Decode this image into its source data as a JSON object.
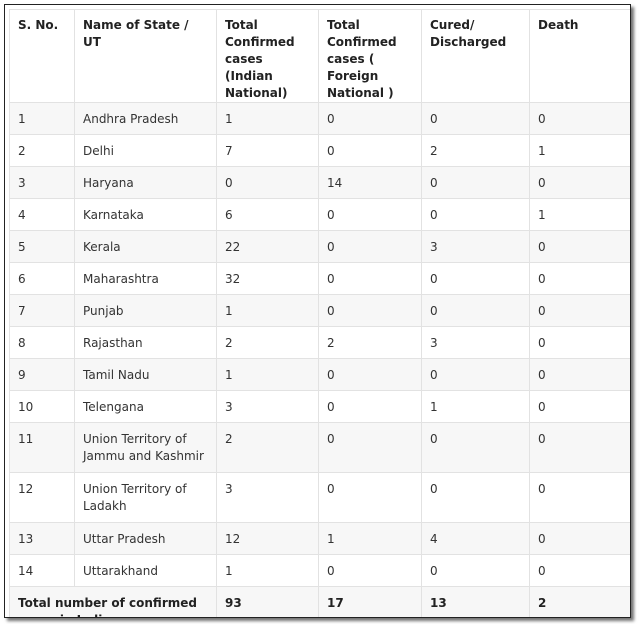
{
  "headers": [
    "S. No.",
    "Name of State / UT",
    "Total Confirmed cases (Indian National)",
    "Total Confirmed cases ( Foreign National )",
    "Cured/ Discharged",
    "Death"
  ],
  "rows": [
    [
      "1",
      "Andhra Pradesh",
      "1",
      "0",
      "0",
      "0"
    ],
    [
      "2",
      "Delhi",
      "7",
      "0",
      "2",
      "1"
    ],
    [
      "3",
      "Haryana",
      "0",
      "14",
      "0",
      "0"
    ],
    [
      "4",
      "Karnataka",
      "6",
      "0",
      "0",
      "1"
    ],
    [
      "5",
      "Kerala",
      "22",
      "0",
      "3",
      "0"
    ],
    [
      "6",
      "Maharashtra",
      "32",
      "0",
      "0",
      "0"
    ],
    [
      "7",
      "Punjab",
      "1",
      "0",
      "0",
      "0"
    ],
    [
      "8",
      "Rajasthan",
      "2",
      "2",
      "3",
      "0"
    ],
    [
      "9",
      "Tamil Nadu",
      "1",
      "0",
      "0",
      "0"
    ],
    [
      "10",
      "Telengana",
      "3",
      "0",
      "1",
      "0"
    ],
    [
      "11",
      "Union Territory of Jammu and Kashmir",
      "2",
      "0",
      "0",
      "0"
    ],
    [
      "12",
      "Union Territory of Ladakh",
      "3",
      "0",
      "0",
      "0"
    ],
    [
      "13",
      "Uttar Pradesh",
      "12",
      "1",
      "4",
      "0"
    ],
    [
      "14",
      "Uttarakhand",
      "1",
      "0",
      "0",
      "0"
    ]
  ],
  "total": {
    "label": "Total number of confirmed cases in India",
    "indian": "93",
    "foreign": "17",
    "cured": "13",
    "death": "2"
  }
}
